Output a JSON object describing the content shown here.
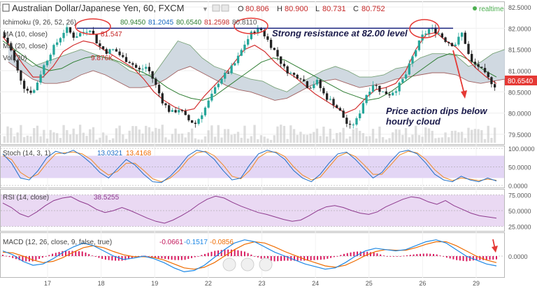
{
  "header": {
    "title": "Australian Dollar/Japanese Yen, 60, FXCM",
    "ohlc_labels": [
      "O",
      "H",
      "L",
      "C"
    ],
    "ohlc_values": [
      "80.806",
      "80.900",
      "80.731",
      "80.752"
    ],
    "realtime": "realtime"
  },
  "indicators": {
    "ichimoku": {
      "label": "Ichimoku (9, 26, 52, 26)",
      "values": [
        "80.9450",
        "81.2045",
        "80.6540",
        "81.2598",
        "80.8110"
      ]
    },
    "ma1": {
      "label": "MA (10, close)",
      "value": "81.547"
    },
    "ma2": {
      "label": "MA (20, close)"
    },
    "vol": {
      "label": "Vol (20)",
      "value": "9.876K"
    }
  },
  "annotations": {
    "resistance": "Strong resistance at 82.00 level",
    "dip_line1": "Price action dips below",
    "dip_line2": "hourly cloud"
  },
  "colors": {
    "candle_up": "#26a69a",
    "candle_down": "#222222",
    "cloud": "#c8d2dc",
    "ma_red": "#d32f2f",
    "ma_green": "#2e7d32",
    "resistance": "#1a237e",
    "stoch_k": "#1e6fc8",
    "stoch_d": "#f08a24",
    "stoch_band": "#e3d6f5",
    "rsi": "#8e3a8e",
    "rsi_band": "#ead9f3",
    "macd_hist": "#d81b60",
    "macd_line": "#1e88e5",
    "signal_line": "#ef6c00",
    "volume": "#cfcfcf",
    "price_tag": "#e53935",
    "annotation": "#1b1b4b",
    "arrow": "#e53935"
  },
  "chart_data": [
    {
      "type": "candlestick",
      "title": "Australian Dollar/Japanese Yen, 60, FXCM",
      "x_ticks": [
        "17",
        "18",
        "19",
        "22",
        "23",
        "24",
        "25",
        "26",
        "29"
      ],
      "y_ticks": [
        "82.5000",
        "82.0000",
        "81.5000",
        "81.0000",
        "80.5000",
        "80.0000",
        "79.5000"
      ],
      "ylim": [
        79.3,
        82.6
      ],
      "last_price": "80.6540",
      "resistance_level": 82.0,
      "close_path": [
        81.9,
        81.6,
        81.0,
        80.55,
        80.5,
        81.0,
        81.4,
        81.7,
        82.0,
        81.8,
        81.9,
        82.0,
        81.6,
        81.45,
        81.5,
        81.3,
        81.2,
        81.0,
        81.1,
        80.7,
        80.25,
        80.0,
        80.1,
        79.85,
        79.75,
        80.05,
        80.4,
        80.8,
        80.95,
        81.2,
        81.6,
        81.9,
        82.0,
        81.7,
        81.4,
        81.05,
        80.9,
        80.85,
        80.6,
        80.75,
        80.4,
        80.25,
        80.0,
        79.65,
        79.85,
        80.4,
        80.7,
        80.5,
        80.45,
        80.6,
        80.9,
        81.4,
        81.8,
        82.0,
        81.9,
        81.7,
        81.6,
        81.9,
        81.2,
        81.1,
        80.85,
        80.65
      ],
      "cloud_top": [
        81.6,
        81.3,
        81.1,
        81.2,
        81.3,
        81.4,
        81.5,
        81.4,
        81.3,
        81.2,
        81.0,
        80.9,
        80.9,
        81.3,
        81.7,
        81.6,
        81.3,
        81.1,
        81.0,
        80.9,
        80.8,
        80.75,
        80.6,
        80.5,
        80.7,
        80.85,
        81.0,
        81.1,
        81.0,
        80.85,
        80.85,
        80.9,
        81.05,
        81.1,
        81.3,
        81.4,
        81.4,
        81.35,
        81.1,
        81.2,
        81.4,
        81.5
      ],
      "cloud_bottom": [
        81.2,
        81.0,
        80.8,
        80.7,
        80.7,
        80.75,
        80.9,
        81.0,
        80.9,
        80.75,
        80.6,
        80.6,
        80.65,
        80.8,
        81.0,
        81.1,
        80.95,
        80.8,
        80.65,
        80.55,
        80.5,
        80.4,
        80.3,
        80.35,
        80.5,
        80.65,
        80.75,
        80.8,
        80.7,
        80.6,
        80.65,
        80.7,
        80.8,
        80.85,
        80.9,
        80.95,
        80.95,
        80.9,
        80.75,
        80.7,
        80.75,
        80.8
      ],
      "ma_red_path": [
        81.8,
        81.5,
        81.15,
        80.85,
        80.85,
        81.1,
        81.45,
        81.6,
        81.7,
        81.65,
        81.5,
        81.35,
        81.2,
        81.05,
        80.8,
        80.5,
        80.3,
        80.15,
        80.05,
        80.1,
        80.4,
        80.65,
        80.9,
        81.2,
        81.5,
        81.6,
        81.45,
        81.2,
        81.0,
        80.85,
        80.65,
        80.45,
        80.3,
        80.15,
        80.0,
        80.1,
        80.35,
        80.55,
        80.6,
        80.7,
        81.0,
        81.5,
        81.85,
        81.9,
        81.7,
        81.55,
        81.3,
        81.05,
        80.85,
        80.7
      ],
      "ma_green_path": [
        81.7,
        81.5,
        81.3,
        81.1,
        81.0,
        81.05,
        81.2,
        81.3,
        81.35,
        81.3,
        81.2,
        81.05,
        80.95,
        80.8,
        80.6,
        80.45,
        80.35,
        80.3,
        80.4,
        80.6,
        80.8,
        81.0,
        81.2,
        81.3,
        81.25,
        81.1,
        80.95,
        80.8,
        80.65,
        80.5,
        80.4,
        80.3,
        80.35,
        80.5,
        80.7,
        80.9,
        81.1,
        81.3,
        81.4,
        81.35,
        81.2,
        81.0,
        80.85
      ]
    },
    {
      "type": "line",
      "title": "Stoch (14, 3, 1)",
      "values_label": [
        "13.0321",
        "13.4168"
      ],
      "y_ticks": [
        "100.0000",
        "50.0000",
        "0.0000"
      ],
      "ylim": [
        0,
        100
      ],
      "series": [
        {
          "name": "%K",
          "values": [
            85,
            60,
            20,
            15,
            40,
            75,
            92,
            85,
            95,
            80,
            60,
            35,
            20,
            45,
            70,
            55,
            30,
            10,
            8,
            25,
            50,
            80,
            95,
            90,
            70,
            40,
            15,
            20,
            55,
            85,
            95,
            88,
            70,
            40,
            20,
            10,
            30,
            60,
            85,
            90,
            70,
            45,
            20,
            35,
            65,
            90,
            95,
            85,
            60,
            30,
            15,
            10,
            25,
            15,
            10,
            20,
            12
          ]
        },
        {
          "name": "%D",
          "values": [
            80,
            70,
            35,
            20,
            30,
            60,
            85,
            88,
            90,
            85,
            70,
            45,
            28,
            38,
            60,
            60,
            40,
            18,
            10,
            20,
            40,
            70,
            88,
            92,
            80,
            55,
            25,
            18,
            40,
            75,
            90,
            90,
            78,
            50,
            28,
            15,
            22,
            50,
            78,
            88,
            78,
            55,
            30,
            30,
            55,
            82,
            92,
            88,
            70,
            42,
            22,
            13,
            20,
            17,
            13,
            17,
            14
          ]
        }
      ]
    },
    {
      "type": "line",
      "title": "RSI (14, close)",
      "value_label": "38.5255",
      "y_ticks": [
        "75.0000",
        "50.0000",
        "25.0000"
      ],
      "ylim": [
        20,
        80
      ],
      "series": [
        {
          "name": "RSI",
          "values": [
            62,
            55,
            45,
            40,
            48,
            58,
            66,
            70,
            72,
            65,
            60,
            52,
            47,
            50,
            55,
            50,
            44,
            38,
            33,
            30,
            35,
            42,
            50,
            60,
            68,
            73,
            70,
            63,
            57,
            52,
            47,
            44,
            40,
            36,
            33,
            35,
            42,
            50,
            56,
            58,
            55,
            50,
            46,
            44,
            48,
            56,
            62,
            68,
            72,
            70,
            64,
            60,
            66,
            58,
            52,
            46,
            42,
            40,
            38
          ]
        }
      ]
    },
    {
      "type": "bar",
      "title": "MACD (12, 26, close, 9, false, true)",
      "values_label": [
        "-0.0661",
        "-0.1517",
        "-0.0856"
      ],
      "y_ticks": [
        "0.0000"
      ],
      "ylim": [
        -0.3,
        0.3
      ],
      "series": [
        {
          "name": "MACD",
          "values": [
            0.08,
            0.02,
            -0.08,
            -0.14,
            -0.12,
            -0.04,
            0.06,
            0.14,
            0.2,
            0.16,
            0.08,
            0.0,
            -0.05,
            -0.03,
            0.0,
            -0.04,
            -0.1,
            -0.18,
            -0.24,
            -0.22,
            -0.14,
            -0.02,
            0.1,
            0.2,
            0.25,
            0.22,
            0.14,
            0.06,
            0.0,
            -0.06,
            -0.12,
            -0.16,
            -0.2,
            -0.18,
            -0.1,
            0.0,
            0.08,
            0.12,
            0.1,
            0.08,
            0.1,
            0.16,
            0.22,
            0.25,
            0.2,
            0.1,
            0.0,
            -0.06,
            -0.12,
            -0.15
          ]
        },
        {
          "name": "Signal",
          "values": [
            0.06,
            0.05,
            0.0,
            -0.06,
            -0.1,
            -0.08,
            -0.02,
            0.06,
            0.13,
            0.16,
            0.13,
            0.07,
            0.02,
            -0.01,
            -0.01,
            -0.02,
            -0.06,
            -0.12,
            -0.18,
            -0.2,
            -0.17,
            -0.1,
            0.0,
            0.1,
            0.18,
            0.22,
            0.2,
            0.14,
            0.07,
            0.01,
            -0.05,
            -0.1,
            -0.15,
            -0.17,
            -0.14,
            -0.07,
            0.01,
            0.07,
            0.1,
            0.09,
            0.09,
            0.13,
            0.18,
            0.22,
            0.22,
            0.16,
            0.08,
            0.0,
            -0.06,
            -0.1
          ]
        }
      ]
    }
  ]
}
